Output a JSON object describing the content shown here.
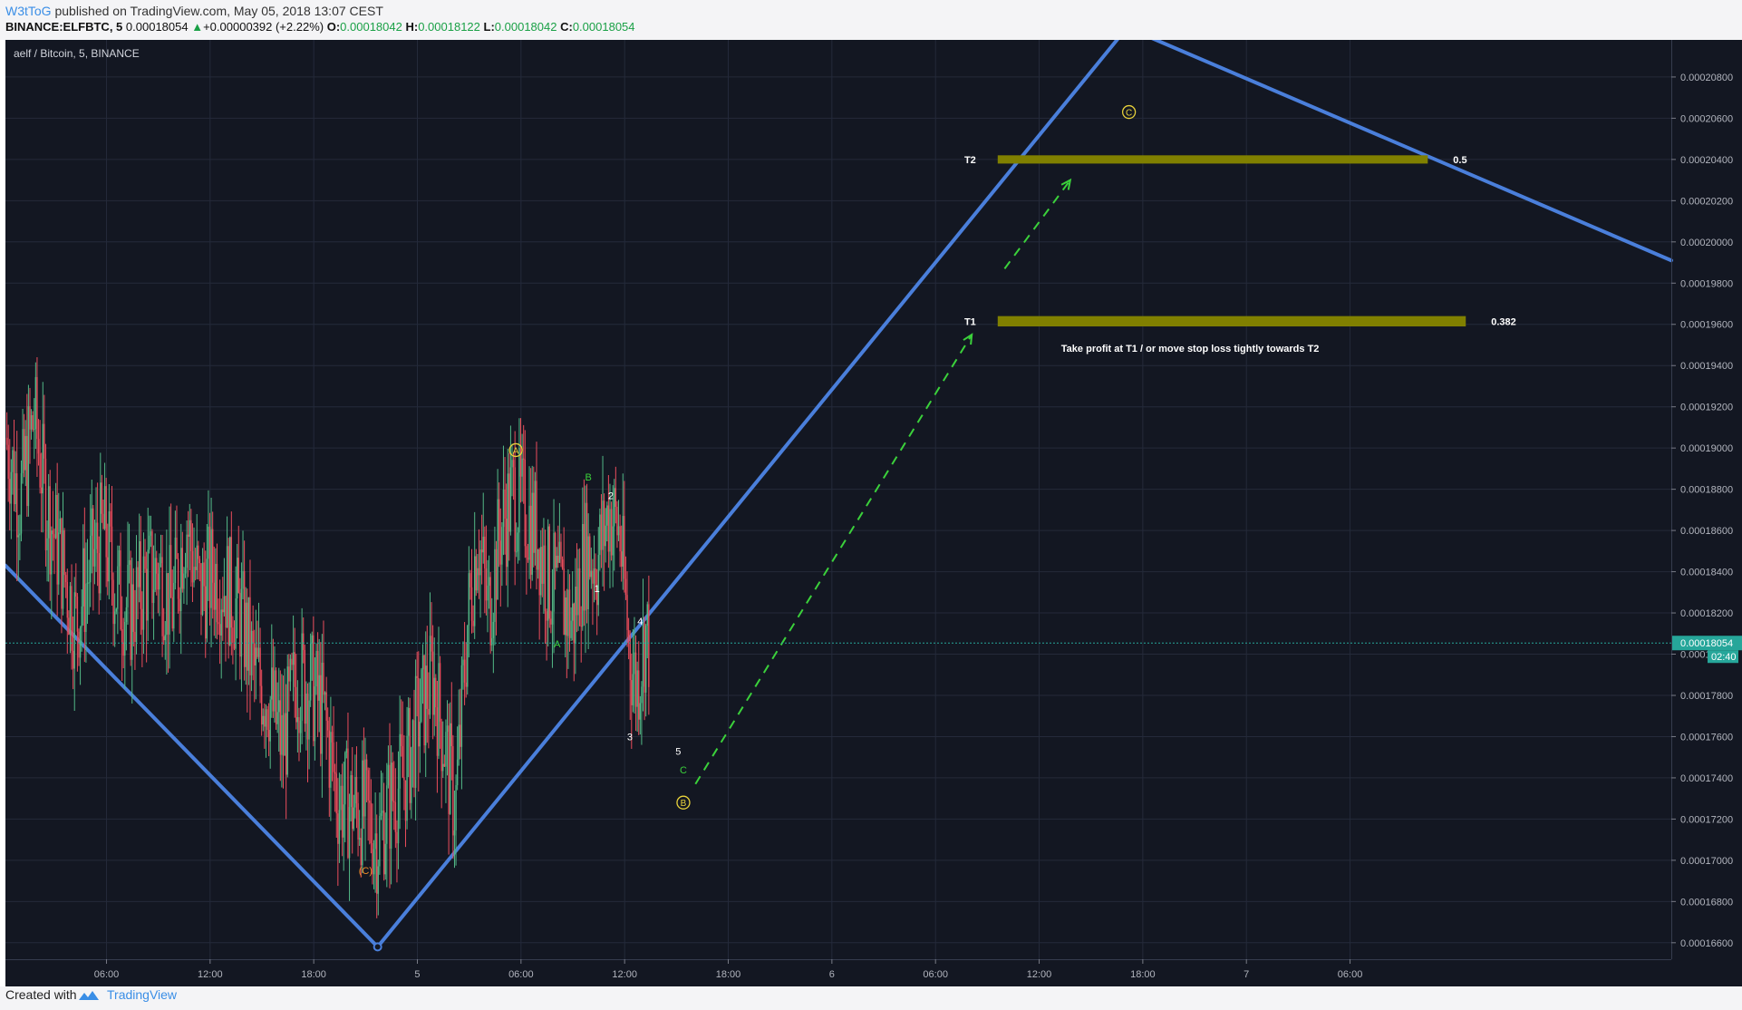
{
  "header": {
    "author": "W3tToG",
    "published": "published on TradingView.com, May 05, 2018 13:07 CEST",
    "symbol": "BINANCE:ELFBTC, 5",
    "last": "0.00018054",
    "change_icon": "triangle-up-icon",
    "change": "+0.00000392 (+2.22%)",
    "o_label": "O:",
    "o_value": "0.00018042",
    "h_label": "H:",
    "h_value": "0.00018122",
    "l_label": "L:",
    "l_value": "0.00018042",
    "c_label": "C:",
    "c_value": "0.00018054"
  },
  "chart_data": {
    "type": "candlestick",
    "title": "aelf / Bitcoin, 5, BINANCE",
    "background": "#131722",
    "price_axis": {
      "ticks": [
        "0.00020800",
        "0.00020600",
        "0.00020400",
        "0.00020200",
        "0.00020000",
        "0.00019800",
        "0.00019600",
        "0.00019400",
        "0.00019200",
        "0.00019000",
        "0.00018800",
        "0.00018600",
        "0.00018400",
        "0.00018200",
        "0.00018000",
        "0.00017800",
        "0.00017600",
        "0.00017400",
        "0.00017200",
        "0.00017000",
        "0.00016800",
        "0.00016600"
      ],
      "ylim": [
        0.0001652,
        0.0002098
      ]
    },
    "time_axis": {
      "ticks": [
        {
          "label": "06:00",
          "t": 6
        },
        {
          "label": "12:00",
          "t": 12
        },
        {
          "label": "18:00",
          "t": 18
        },
        {
          "label": "5",
          "t": 24
        },
        {
          "label": "06:00",
          "t": 30
        },
        {
          "label": "12:00",
          "t": 36
        },
        {
          "label": "18:00",
          "t": 42
        },
        {
          "label": "6",
          "t": 48
        },
        {
          "label": "06:00",
          "t": 54
        },
        {
          "label": "12:00",
          "t": 60
        },
        {
          "label": "18:00",
          "t": 66
        },
        {
          "label": "7",
          "t": 72
        },
        {
          "label": "06:00",
          "t": 78
        }
      ],
      "xlim": [
        0.15,
        96.6
      ],
      "units": "hours since May 4 00:00"
    },
    "price_path": [
      [
        0.15,
        0.0001905
      ],
      [
        1.0,
        0.0001875
      ],
      [
        1.8,
        0.0001915
      ],
      [
        2.6,
        0.000187
      ],
      [
        3.4,
        0.0001845
      ],
      [
        4.2,
        0.0001815
      ],
      [
        5.0,
        0.000184
      ],
      [
        5.8,
        0.000186
      ],
      [
        6.6,
        0.000183
      ],
      [
        7.4,
        0.000182
      ],
      [
        8.2,
        0.0001835
      ],
      [
        9.0,
        0.0001842
      ],
      [
        9.8,
        0.0001822
      ],
      [
        10.6,
        0.0001865
      ],
      [
        11.4,
        0.000183
      ],
      [
        12.2,
        0.000184
      ],
      [
        13.0,
        0.0001832
      ],
      [
        13.8,
        0.0001818
      ],
      [
        14.6,
        0.000179
      ],
      [
        15.4,
        0.000178
      ],
      [
        16.2,
        0.0001755
      ],
      [
        17.0,
        0.000179
      ],
      [
        17.8,
        0.0001785
      ],
      [
        18.6,
        0.000177
      ],
      [
        19.4,
        0.000173
      ],
      [
        20.2,
        0.0001727
      ],
      [
        21.0,
        0.0001722
      ],
      [
        21.7,
        0.000171
      ],
      [
        22.5,
        0.000173
      ],
      [
        23.3,
        0.0001742
      ],
      [
        24.1,
        0.000177
      ],
      [
        24.9,
        0.000179
      ],
      [
        25.7,
        0.000175
      ],
      [
        26.2,
        0.0001725
      ],
      [
        26.9,
        0.0001815
      ],
      [
        27.5,
        0.000186
      ],
      [
        28.1,
        0.000182
      ],
      [
        28.8,
        0.000186
      ],
      [
        29.5,
        0.0001878
      ],
      [
        30.2,
        0.000187
      ],
      [
        30.9,
        0.000186
      ],
      [
        31.6,
        0.0001835
      ],
      [
        32.3,
        0.0001828
      ],
      [
        33.0,
        0.0001815
      ],
      [
        33.7,
        0.000185
      ],
      [
        34.4,
        0.0001845
      ],
      [
        35.1,
        0.000187
      ],
      [
        35.7,
        0.000186
      ],
      [
        36.3,
        0.00018
      ],
      [
        36.7,
        0.0001785
      ],
      [
        37.2,
        0.000181
      ],
      [
        37.4,
        0.0001805
      ]
    ],
    "last_price": {
      "value": "0.00018054",
      "time_left": "02:40"
    },
    "last_price_color": "#26a69a",
    "candle_up_color": "#53b987",
    "candle_down_color": "#eb4d5c",
    "trendlines": [
      {
        "t1": 0.15,
        "p1": 0.0001843,
        "t2": 21.7,
        "p2": 0.0001658,
        "color": "#4a7fdb"
      },
      {
        "t1": 21.7,
        "p1": 0.0001658,
        "t2": 64.7,
        "p2": 0.00021,
        "color": "#4a7fdb"
      },
      {
        "t1": 66.2,
        "p1": 0.00021,
        "t2": 96.6,
        "p2": 0.0001991,
        "color": "#4a7fdb"
      }
    ],
    "projections": [
      {
        "t1": 40.1,
        "p1": 0.0001737,
        "t2": 56.1,
        "p2": 0.0001955,
        "color": "#3bd13b"
      },
      {
        "t1": 58.0,
        "p1": 0.0001987,
        "t2": 61.8,
        "p2": 0.000203,
        "color": "#3bd13b"
      }
    ],
    "target_zones": [
      {
        "label": "T2",
        "level": "0.5",
        "t1": 57.6,
        "t2": 82.5,
        "p_top": 0.0002042,
        "p_bottom": 0.0002038,
        "color": "#808000"
      },
      {
        "label": "T1",
        "level": "0.382",
        "t1": 57.6,
        "t2": 84.7,
        "p_top": 0.0001964,
        "p_bottom": 0.0001959,
        "color": "#808000"
      }
    ],
    "note": "Take profit at T1 / or move stop loss tightly towards T2",
    "annotations": [
      {
        "text": "A",
        "t": 29.7,
        "p": 0.0001899,
        "circled": true,
        "color": "#e8d23b"
      },
      {
        "text": "B",
        "t": 39.4,
        "p": 0.0001728,
        "circled": true,
        "color": "#e8d23b"
      },
      {
        "text": "C",
        "t": 65.2,
        "p": 0.0002063,
        "circled": true,
        "color": "#e8d23b"
      },
      {
        "text": "(C)",
        "t": 21.0,
        "p": 0.0001695,
        "circled": false,
        "color": "#f08c28"
      },
      {
        "text": "B",
        "t": 33.9,
        "p": 0.0001886,
        "circled": false,
        "color": "#3bd13b"
      },
      {
        "text": "A",
        "t": 32.1,
        "p": 0.0001805,
        "circled": false,
        "color": "#3bd13b"
      },
      {
        "text": "C",
        "t": 39.4,
        "p": 0.0001744,
        "circled": false,
        "color": "#3bd13b"
      },
      {
        "text": "1",
        "t": 34.4,
        "p": 0.0001832,
        "circled": false,
        "color": "#ffffff"
      },
      {
        "text": "2",
        "t": 35.2,
        "p": 0.0001877,
        "circled": false,
        "color": "#ffffff"
      },
      {
        "text": "3",
        "t": 36.3,
        "p": 0.000176,
        "circled": false,
        "color": "#ffffff"
      },
      {
        "text": "4",
        "t": 36.9,
        "p": 0.0001816,
        "circled": false,
        "color": "#ffffff"
      },
      {
        "text": "5",
        "t": 39.1,
        "p": 0.0001753,
        "circled": false,
        "color": "#ffffff"
      }
    ]
  },
  "footer": {
    "created_with": "Created with",
    "logo_icon": "tradingview-logo-icon",
    "brand": "TradingView"
  }
}
